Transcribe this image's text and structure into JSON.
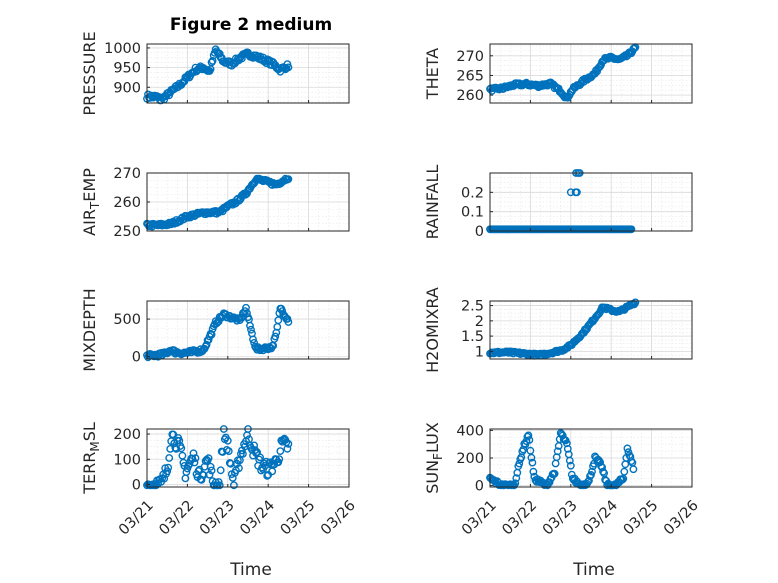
{
  "figure": {
    "title": "Figure 2 medium",
    "xlabel": "Time"
  },
  "colors": {
    "marker": "#0072BD",
    "axes": "#262626",
    "grid": "#d9d9d9"
  },
  "chart_data": [
    {
      "type": "scatter",
      "ylabel": "PRESSURE",
      "xlim": [
        0,
        5
      ],
      "ylim": [
        860,
        1010
      ],
      "yticks": [
        900,
        950,
        1000
      ],
      "ytick_labels": [
        "900",
        "950",
        "1000"
      ],
      "xticks": [
        0,
        1,
        2,
        3,
        4,
        5
      ],
      "xtick_labels": [],
      "grid": true,
      "grid_minor": true,
      "anchors": [
        [
          0.0,
          877
        ],
        [
          0.25,
          875
        ],
        [
          0.35,
          868
        ],
        [
          0.5,
          880
        ],
        [
          0.8,
          905
        ],
        [
          1.0,
          925
        ],
        [
          1.2,
          945
        ],
        [
          1.4,
          950
        ],
        [
          1.55,
          940
        ],
        [
          1.7,
          995
        ],
        [
          1.9,
          965
        ],
        [
          2.1,
          960
        ],
        [
          2.3,
          975
        ],
        [
          2.5,
          985
        ],
        [
          2.7,
          978
        ],
        [
          2.9,
          970
        ],
        [
          3.1,
          960
        ],
        [
          3.3,
          945
        ],
        [
          3.5,
          955
        ]
      ],
      "noise": 6
    },
    {
      "type": "scatter",
      "ylabel": "THETA",
      "xlim": [
        0,
        5
      ],
      "ylim": [
        258,
        273
      ],
      "yticks": [
        260,
        265,
        270
      ],
      "ytick_labels": [
        "260",
        "265",
        "270"
      ],
      "xticks": [
        0,
        1,
        2,
        3,
        4,
        5
      ],
      "xtick_labels": [],
      "grid": true,
      "grid_minor": true,
      "anchors": [
        [
          0.0,
          261.4
        ],
        [
          0.3,
          261.7
        ],
        [
          0.6,
          262.6
        ],
        [
          0.9,
          262.8
        ],
        [
          1.2,
          262.4
        ],
        [
          1.5,
          262.9
        ],
        [
          1.75,
          261.0
        ],
        [
          1.9,
          259.2
        ],
        [
          2.05,
          261.5
        ],
        [
          2.3,
          263.5
        ],
        [
          2.6,
          265.5
        ],
        [
          2.8,
          269.0
        ],
        [
          3.0,
          269.5
        ],
        [
          3.2,
          269.0
        ],
        [
          3.4,
          270.0
        ],
        [
          3.6,
          272.0
        ]
      ],
      "noise": 0.4
    },
    {
      "type": "scatter",
      "ylabel": "AIR_TEMP",
      "xlim": [
        0,
        5
      ],
      "ylim": [
        250,
        270
      ],
      "yticks": [
        250,
        260,
        270
      ],
      "ytick_labels": [
        "250",
        "260",
        "270"
      ],
      "xticks": [
        0,
        1,
        2,
        3,
        4,
        5
      ],
      "xtick_labels": [],
      "grid": true,
      "grid_minor": true,
      "anchors": [
        [
          0.0,
          252
        ],
        [
          0.3,
          252
        ],
        [
          0.6,
          252.5
        ],
        [
          1.0,
          255.0
        ],
        [
          1.4,
          256.3
        ],
        [
          1.8,
          256.5
        ],
        [
          2.0,
          258.5
        ],
        [
          2.2,
          260.0
        ],
        [
          2.45,
          263.0
        ],
        [
          2.7,
          268.0
        ],
        [
          2.95,
          267.0
        ],
        [
          3.2,
          266.0
        ],
        [
          3.5,
          268.5
        ]
      ],
      "noise": 0.6
    },
    {
      "type": "scatter",
      "ylabel": "RAINFALL",
      "xlim": [
        0,
        5
      ],
      "ylim": [
        0,
        0.3
      ],
      "yticks": [
        0,
        0.1,
        0.2
      ],
      "ytick_labels": [
        "0",
        "0.1",
        "0.2"
      ],
      "xticks": [
        0,
        1,
        2,
        3,
        4,
        5
      ],
      "xtick_labels": [],
      "grid": true,
      "grid_minor": true,
      "anchors": [
        [
          0.0,
          0
        ],
        [
          3.5,
          0
        ]
      ],
      "noise": 0,
      "extra_points": [
        [
          2.0,
          0.2
        ],
        [
          2.12,
          0.2
        ],
        [
          2.15,
          0.2
        ],
        [
          2.13,
          0.3
        ],
        [
          2.18,
          0.3
        ],
        [
          2.22,
          0.3
        ]
      ]
    },
    {
      "type": "scatter",
      "ylabel": "MIXDEPTH",
      "xlim": [
        0,
        5
      ],
      "ylim": [
        -30,
        740
      ],
      "yticks": [
        0,
        500
      ],
      "ytick_labels": [
        "0",
        "500"
      ],
      "xticks": [
        0,
        1,
        2,
        3,
        4,
        5
      ],
      "xtick_labels": [],
      "grid": true,
      "grid_minor": true,
      "anchors": [
        [
          0.0,
          10
        ],
        [
          0.4,
          30
        ],
        [
          0.6,
          90
        ],
        [
          0.7,
          60
        ],
        [
          0.9,
          50
        ],
        [
          1.1,
          60
        ],
        [
          1.4,
          90
        ],
        [
          1.6,
          320
        ],
        [
          1.7,
          450
        ],
        [
          1.9,
          560
        ],
        [
          2.1,
          520
        ],
        [
          2.3,
          480
        ],
        [
          2.45,
          640
        ],
        [
          2.6,
          300
        ],
        [
          2.7,
          100
        ],
        [
          2.9,
          110
        ],
        [
          3.1,
          130
        ],
        [
          3.2,
          300
        ],
        [
          3.3,
          650
        ],
        [
          3.5,
          480
        ]
      ],
      "noise": 25
    },
    {
      "type": "scatter",
      "ylabel": "H2OMIXRA",
      "xlim": [
        0,
        5
      ],
      "ylim": [
        0.75,
        2.65
      ],
      "yticks": [
        1,
        1.5,
        2,
        2.5
      ],
      "ytick_labels": [
        "1",
        "1.5",
        "2",
        "2.5"
      ],
      "xticks": [
        0,
        1,
        2,
        3,
        4,
        5
      ],
      "xtick_labels": [],
      "grid": true,
      "grid_minor": true,
      "anchors": [
        [
          0.0,
          0.95
        ],
        [
          0.4,
          0.97
        ],
        [
          0.8,
          0.93
        ],
        [
          1.2,
          0.88
        ],
        [
          1.5,
          0.95
        ],
        [
          1.8,
          1.05
        ],
        [
          2.0,
          1.2
        ],
        [
          2.3,
          1.6
        ],
        [
          2.6,
          2.1
        ],
        [
          2.8,
          2.45
        ],
        [
          3.0,
          2.35
        ],
        [
          3.2,
          2.3
        ],
        [
          3.4,
          2.45
        ],
        [
          3.6,
          2.6
        ]
      ],
      "noise": 0.04
    },
    {
      "type": "scatter",
      "ylabel": "TERR_MSL",
      "xlim": [
        0,
        5
      ],
      "ylim": [
        -10,
        220
      ],
      "yticks": [
        0,
        100,
        200
      ],
      "ytick_labels": [
        "0",
        "100",
        "200"
      ],
      "xticks": [
        0,
        1,
        2,
        3,
        4,
        5
      ],
      "xtick_labels": [
        "03/21",
        "03/22",
        "03/23",
        "03/24",
        "03/25",
        "03/26"
      ],
      "grid": true,
      "grid_minor": true,
      "anchors": [
        [
          0.0,
          0
        ],
        [
          0.35,
          0
        ],
        [
          0.5,
          60
        ],
        [
          0.6,
          200
        ],
        [
          0.8,
          150
        ],
        [
          0.95,
          50
        ],
        [
          1.15,
          110
        ],
        [
          1.3,
          30
        ],
        [
          1.5,
          100
        ],
        [
          1.65,
          0
        ],
        [
          1.8,
          0
        ],
        [
          1.9,
          210
        ],
        [
          2.0,
          150
        ],
        [
          2.15,
          0
        ],
        [
          2.3,
          110
        ],
        [
          2.5,
          200
        ],
        [
          2.65,
          130
        ],
        [
          2.85,
          70
        ],
        [
          3.0,
          60
        ],
        [
          3.2,
          90
        ],
        [
          3.35,
          160
        ],
        [
          3.5,
          150
        ]
      ],
      "noise": 30
    },
    {
      "type": "scatter",
      "ylabel": "SUN_FLUX",
      "xlim": [
        0,
        5
      ],
      "ylim": [
        -10,
        410
      ],
      "yticks": [
        0,
        200,
        400
      ],
      "ytick_labels": [
        "0",
        "200",
        "400"
      ],
      "xticks": [
        0,
        1,
        2,
        3,
        4,
        5
      ],
      "xtick_labels": [
        "03/21",
        "03/22",
        "03/23",
        "03/24",
        "03/25",
        "03/26"
      ],
      "grid": true,
      "grid_minor": true,
      "anchors": [
        [
          0.0,
          50
        ],
        [
          0.3,
          0
        ],
        [
          0.6,
          0
        ],
        [
          0.8,
          250
        ],
        [
          0.95,
          370
        ],
        [
          1.1,
          50
        ],
        [
          1.4,
          0
        ],
        [
          1.6,
          100
        ],
        [
          1.75,
          380
        ],
        [
          1.9,
          300
        ],
        [
          2.05,
          50
        ],
        [
          2.25,
          0
        ],
        [
          2.45,
          30
        ],
        [
          2.6,
          200
        ],
        [
          2.75,
          150
        ],
        [
          2.9,
          0
        ],
        [
          3.1,
          0
        ],
        [
          3.3,
          50
        ],
        [
          3.4,
          270
        ],
        [
          3.55,
          130
        ]
      ],
      "noise": 15
    }
  ]
}
